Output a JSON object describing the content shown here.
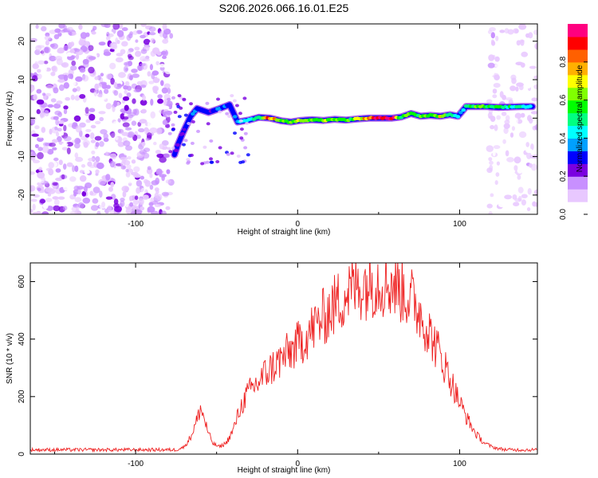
{
  "title": "S206.2026.066.16.01.E25",
  "chart_data": [
    {
      "type": "heatmap",
      "xlabel": "Height of straight line (km)",
      "ylabel": "Frequency (Hz)",
      "xlim": [
        -165,
        148
      ],
      "ylim": [
        -25,
        24.5
      ],
      "xticks": [
        -100,
        0,
        100
      ],
      "yticks": [
        -20,
        -10,
        0,
        10,
        20
      ],
      "colorbar": {
        "label": "Normalized spectral amplitude",
        "range": [
          0,
          1
        ],
        "ticks": [
          0.0,
          0.2,
          0.4,
          0.6,
          0.8
        ],
        "tick_labels": [
          "0.0",
          "0.2",
          "0.4",
          "0.6",
          "0.8"
        ],
        "colormap": [
          "#ffffff",
          "#e8c8ff",
          "#c890ff",
          "#7a00e0",
          "#0000ff",
          "#00a0ff",
          "#00ffff",
          "#00ff80",
          "#00ff00",
          "#80ff00",
          "#ffff00",
          "#ffb000",
          "#ff6000",
          "#ff0000",
          "#ff0080"
        ]
      },
      "signal_trace": [
        {
          "x": -76,
          "y": -9.5,
          "a": 0.3
        },
        {
          "x": -74,
          "y": -7,
          "a": 0.3
        },
        {
          "x": -71,
          "y": -4,
          "a": 0.25
        },
        {
          "x": -66,
          "y": 0.5,
          "a": 0.35
        },
        {
          "x": -62,
          "y": 2.5,
          "a": 0.3
        },
        {
          "x": -55,
          "y": 1.5,
          "a": 0.25
        },
        {
          "x": -48,
          "y": 2.5,
          "a": 0.35
        },
        {
          "x": -42,
          "y": 3.5,
          "a": 0.3
        },
        {
          "x": -37,
          "y": -1,
          "a": 0.4
        },
        {
          "x": -30,
          "y": -0.5,
          "a": 0.45
        },
        {
          "x": -24,
          "y": 0.2,
          "a": 0.45
        },
        {
          "x": -17,
          "y": 0,
          "a": 0.85
        },
        {
          "x": -10,
          "y": -0.7,
          "a": 0.55
        },
        {
          "x": -4,
          "y": -1,
          "a": 0.6
        },
        {
          "x": 2,
          "y": -0.6,
          "a": 0.7
        },
        {
          "x": 9,
          "y": -0.4,
          "a": 0.6
        },
        {
          "x": 16,
          "y": -0.6,
          "a": 0.65
        },
        {
          "x": 23,
          "y": -0.3,
          "a": 0.6
        },
        {
          "x": 30,
          "y": -0.5,
          "a": 0.55
        },
        {
          "x": 37,
          "y": -0.2,
          "a": 0.65
        },
        {
          "x": 44,
          "y": 0,
          "a": 0.75
        },
        {
          "x": 51,
          "y": 0,
          "a": 0.95
        },
        {
          "x": 58,
          "y": 0,
          "a": 0.9
        },
        {
          "x": 64,
          "y": 0.3,
          "a": 0.6
        },
        {
          "x": 70,
          "y": 1.2,
          "a": 0.55
        },
        {
          "x": 76,
          "y": 0.5,
          "a": 0.6
        },
        {
          "x": 82,
          "y": 0.7,
          "a": 0.55
        },
        {
          "x": 88,
          "y": 0.5,
          "a": 0.7
        },
        {
          "x": 94,
          "y": 0.9,
          "a": 0.45
        },
        {
          "x": 99,
          "y": 0.5,
          "a": 0.4
        },
        {
          "x": 104,
          "y": 3,
          "a": 0.5
        },
        {
          "x": 110,
          "y": 3,
          "a": 0.6
        },
        {
          "x": 117,
          "y": 3,
          "a": 0.55
        },
        {
          "x": 124,
          "y": 2.8,
          "a": 0.5
        },
        {
          "x": 131,
          "y": 2.9,
          "a": 0.5
        },
        {
          "x": 138,
          "y": 3,
          "a": 0.45
        },
        {
          "x": 145,
          "y": 3,
          "a": 0.5
        }
      ],
      "noise_regions": [
        {
          "x_from": -165,
          "x_to": -78,
          "level": 0.15
        },
        {
          "x_from": 118,
          "x_to": 148,
          "level": 0.08
        }
      ]
    },
    {
      "type": "line",
      "xlabel": "Height of straight line (km)",
      "ylabel": "SNR (10 * v/v)",
      "xlim": [
        -165,
        148
      ],
      "ylim": [
        0,
        665
      ],
      "xticks": [
        -100,
        0,
        100
      ],
      "yticks": [
        0,
        200,
        400,
        600
      ],
      "series": [
        {
          "name": "SNR",
          "color": "#ee2222",
          "x": [
            -165,
            -150,
            -130,
            -110,
            -90,
            -75,
            -70,
            -66,
            -62,
            -60,
            -58,
            -55,
            -52,
            -48,
            -44,
            -40,
            -36,
            -32,
            -28,
            -24,
            -20,
            -16,
            -12,
            -8,
            -4,
            0,
            5,
            10,
            15,
            20,
            25,
            30,
            35,
            40,
            45,
            50,
            55,
            60,
            65,
            70,
            75,
            80,
            85,
            90,
            95,
            100,
            105,
            110,
            115,
            120,
            125,
            130,
            135,
            140,
            148
          ],
          "values": [
            15,
            15,
            15,
            15,
            15,
            15,
            25,
            60,
            120,
            160,
            130,
            70,
            35,
            25,
            40,
            80,
            150,
            200,
            230,
            250,
            280,
            300,
            320,
            340,
            360,
            380,
            410,
            440,
            470,
            500,
            530,
            560,
            580,
            590,
            600,
            605,
            600,
            590,
            570,
            540,
            500,
            440,
            380,
            320,
            250,
            180,
            120,
            70,
            40,
            25,
            18,
            15,
            15,
            15,
            15
          ]
        }
      ]
    }
  ]
}
